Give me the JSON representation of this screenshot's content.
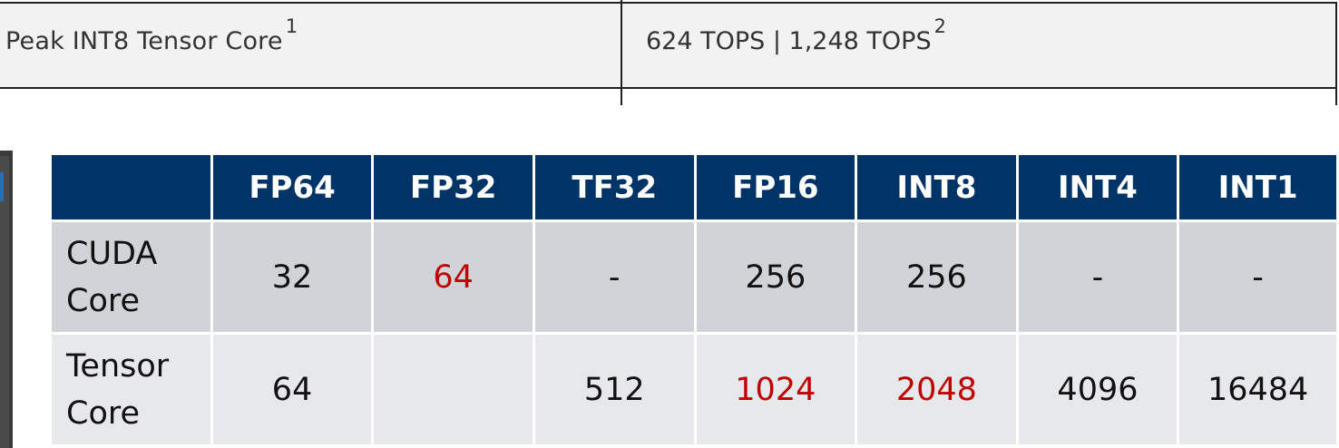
{
  "spec": {
    "label": "Peak INT8 Tensor Core",
    "label_sup": "1",
    "value": "624 TOPS | 1,248 TOPS",
    "value_sup": "2"
  },
  "ops_table": {
    "header_color": "#003366",
    "highlight_color": "#c00000",
    "columns": [
      "",
      "FP64",
      "FP32",
      "TF32",
      "FP16",
      "INT8",
      "INT4",
      "INT1"
    ],
    "rows": [
      {
        "name_line1": "CUDA",
        "name_line2": "Core",
        "cells": [
          {
            "value": "32",
            "highlight": false
          },
          {
            "value": "64",
            "highlight": true
          },
          {
            "value": "-",
            "highlight": false
          },
          {
            "value": "256",
            "highlight": false
          },
          {
            "value": "256",
            "highlight": false
          },
          {
            "value": "-",
            "highlight": false
          },
          {
            "value": "-",
            "highlight": false
          }
        ]
      },
      {
        "name_line1": "Tensor",
        "name_line2": "Core",
        "cells": [
          {
            "value": "64",
            "highlight": false
          },
          {
            "value": "",
            "highlight": false
          },
          {
            "value": "512",
            "highlight": false
          },
          {
            "value": "1024",
            "highlight": true
          },
          {
            "value": "2048",
            "highlight": true
          },
          {
            "value": "4096",
            "highlight": false
          },
          {
            "value": "16484",
            "highlight": false
          }
        ]
      }
    ]
  }
}
